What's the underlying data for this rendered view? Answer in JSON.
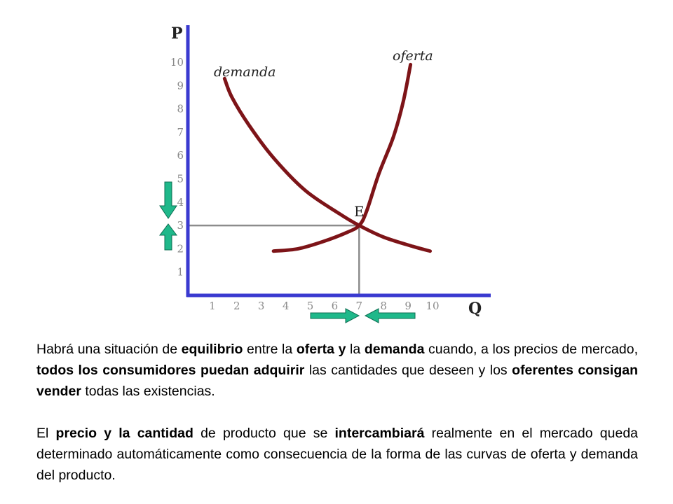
{
  "chart_data": {
    "type": "line",
    "xlabel": "Q",
    "ylabel": "P",
    "xlim": [
      0,
      11
    ],
    "ylim": [
      0,
      11
    ],
    "x_ticks": [
      "1",
      "2",
      "3",
      "4",
      "5",
      "6",
      "7",
      "8",
      "9",
      "10"
    ],
    "y_ticks": [
      "1",
      "2",
      "3",
      "4",
      "5",
      "6",
      "7",
      "8",
      "9",
      "10"
    ],
    "series": [
      {
        "name": "demanda",
        "color": "#7d1418",
        "points": [
          [
            1.5,
            9.3
          ],
          [
            1.8,
            8.5
          ],
          [
            2.5,
            7.3
          ],
          [
            3.5,
            5.9
          ],
          [
            4.8,
            4.5
          ],
          [
            6.2,
            3.5
          ],
          [
            7,
            3
          ],
          [
            8,
            2.5
          ],
          [
            9.2,
            2.1
          ],
          [
            9.9,
            1.9
          ]
        ]
      },
      {
        "name": "oferta",
        "color": "#7d1418",
        "points": [
          [
            3.5,
            1.9
          ],
          [
            4.5,
            2.0
          ],
          [
            5.5,
            2.3
          ],
          [
            6.5,
            2.7
          ],
          [
            7,
            3
          ],
          [
            7.3,
            3.6
          ],
          [
            7.8,
            5.2
          ],
          [
            8.4,
            6.8
          ],
          [
            8.8,
            8.3
          ],
          [
            9.1,
            9.9
          ]
        ]
      }
    ],
    "equilibrium": {
      "label": "E",
      "x": 7,
      "y": 3
    },
    "reference_color": "#8c8c8c",
    "axis_color": "#3a3ad0",
    "arrow_color": "#1fb88a"
  },
  "text": {
    "p1": [
      {
        "t": "Habrá una situación de ",
        "b": false
      },
      {
        "t": "equilibrio",
        "b": true
      },
      {
        "t": " entre la ",
        "b": false
      },
      {
        "t": "oferta y",
        "b": true
      },
      {
        "t": " la ",
        "b": false
      },
      {
        "t": "demanda",
        "b": true
      },
      {
        "t": " cuando, a los precios de mercado, ",
        "b": false
      },
      {
        "t": "todos los consumidores puedan adquirir",
        "b": true
      },
      {
        "t": " las cantidades que deseen y los ",
        "b": false
      },
      {
        "t": "oferentes consigan vender",
        "b": true
      },
      {
        "t": " todas las existencias.",
        "b": false
      }
    ],
    "p2": [
      {
        "t": "El ",
        "b": false
      },
      {
        "t": "precio y la cantidad",
        "b": true
      },
      {
        "t": " de producto que se ",
        "b": false
      },
      {
        "t": "intercambiará",
        "b": true
      },
      {
        "t": " realmente en el mercado queda determinado automáticamente como consecuencia de la forma de las curvas de oferta y demanda del producto.",
        "b": false
      }
    ]
  }
}
